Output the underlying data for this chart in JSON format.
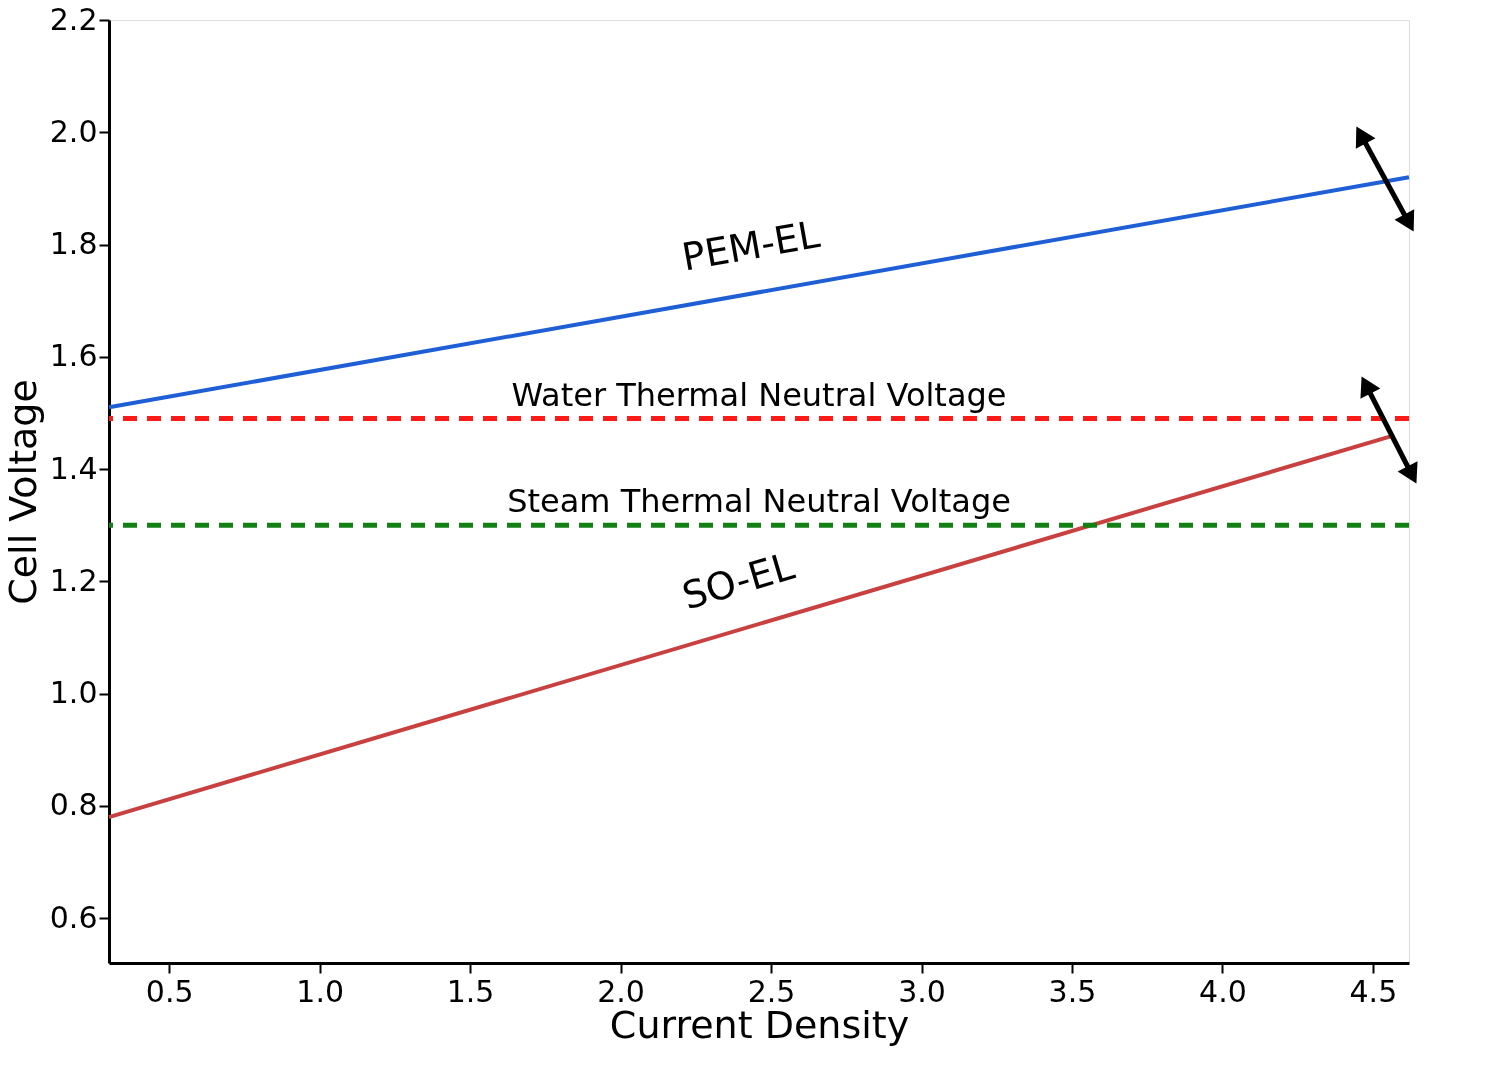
{
  "chart_data": {
    "type": "line",
    "xlabel": "Current Density",
    "ylabel": "Cell Voltage",
    "xlim": [
      0.3,
      4.62
    ],
    "ylim": [
      0.52,
      2.2
    ],
    "xticks": [
      0.5,
      {
        "value": 1,
        "label": "1.0"
      },
      1.5,
      {
        "value": 2,
        "label": "2.0"
      },
      2.5,
      {
        "value": 3,
        "label": "3.0"
      },
      3.5,
      {
        "value": 4,
        "label": "4.0"
      },
      4.5
    ],
    "yticks": [
      0.6,
      0.8,
      {
        "value": 1,
        "label": "1.0"
      },
      1.2,
      1.4,
      1.6,
      1.8,
      {
        "value": 2,
        "label": "2.0"
      },
      2.2
    ],
    "grid": false,
    "line_style": "solid",
    "series": [
      {
        "name": "PEM-EL",
        "color": "#1f5fd6",
        "x": [
          0.3,
          4.62
        ],
        "values": [
          1.51,
          1.92
        ]
      },
      {
        "name": "SO-EL",
        "color": "#c94040",
        "x": [
          0.3,
          4.57
        ],
        "values": [
          0.78,
          1.46
        ]
      }
    ],
    "ref_lines": [
      {
        "axis": "y",
        "value": 1.49,
        "label": "Water Thermal Neutral Voltage",
        "color": "#ff1a1a",
        "line_style": "dashed"
      },
      {
        "axis": "y",
        "value": 1.3,
        "label": "Steam Thermal Neutral Voltage",
        "color": "#128012",
        "line_style": "dashed"
      }
    ]
  }
}
